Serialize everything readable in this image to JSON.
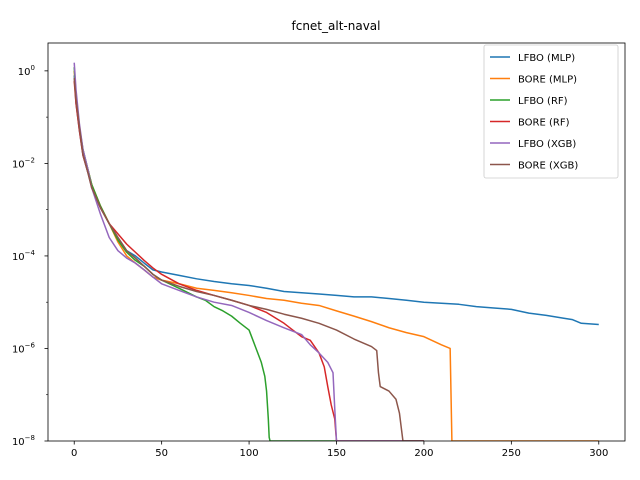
{
  "chart_data": {
    "type": "line",
    "title": "fcnet_alt-naval",
    "xlabel": "",
    "ylabel": "",
    "xlim": [
      -15,
      315
    ],
    "ylim": [
      1e-08,
      4
    ],
    "yscale": "log",
    "x_ticks": [
      0,
      50,
      100,
      150,
      200,
      250,
      300
    ],
    "y_ticks": [
      {
        "value": 1,
        "base": "10",
        "exp": "0"
      },
      {
        "value": 0.01,
        "base": "10",
        "exp": "−2"
      },
      {
        "value": 0.0001,
        "base": "10",
        "exp": "−4"
      },
      {
        "value": 1e-06,
        "base": "10",
        "exp": "−6"
      },
      {
        "value": 1e-08,
        "base": "10",
        "exp": "−8"
      }
    ],
    "grid": false,
    "legend_position": "top-right",
    "series": [
      {
        "name": "LFBO (MLP)",
        "color": "#1f77b4",
        "x": [
          0,
          1,
          3,
          5,
          8,
          10,
          15,
          20,
          25,
          30,
          35,
          40,
          45,
          50,
          60,
          70,
          80,
          90,
          100,
          110,
          120,
          130,
          140,
          150,
          160,
          170,
          180,
          190,
          200,
          210,
          220,
          230,
          240,
          250,
          260,
          270,
          280,
          285,
          290,
          300
        ],
        "y": [
          0.8,
          0.2,
          0.05,
          0.015,
          0.006,
          0.003,
          0.0011,
          0.0005,
          0.00025,
          0.00013,
          0.0001,
          7e-05,
          5e-05,
          4.5e-05,
          3.8e-05,
          3.2e-05,
          2.8e-05,
          2.5e-05,
          2.3e-05,
          2e-05,
          1.7e-05,
          1.6e-05,
          1.5e-05,
          1.4e-05,
          1.3e-05,
          1.3e-05,
          1.2e-05,
          1.1e-05,
          1e-05,
          9.5e-06,
          9e-06,
          8e-06,
          7.5e-06,
          7e-06,
          5.8e-06,
          5.2e-06,
          4.5e-06,
          4.2e-06,
          3.5e-06,
          3.3e-06
        ]
      },
      {
        "name": "BORE (MLP)",
        "color": "#ff7f0e",
        "x": [
          0,
          1,
          3,
          5,
          8,
          10,
          15,
          20,
          25,
          30,
          35,
          40,
          45,
          50,
          60,
          70,
          80,
          90,
          100,
          110,
          120,
          130,
          140,
          150,
          160,
          170,
          180,
          190,
          200,
          210,
          215,
          216,
          300
        ],
        "y": [
          1.0,
          0.3,
          0.06,
          0.018,
          0.007,
          0.0035,
          0.0012,
          0.0005,
          0.0002,
          0.0001,
          7e-05,
          5e-05,
          3.5e-05,
          3e-05,
          2.5e-05,
          2e-05,
          1.8e-05,
          1.6e-05,
          1.4e-05,
          1.2e-05,
          1.1e-05,
          9.5e-06,
          8.5e-06,
          6.5e-06,
          5e-06,
          3.8e-06,
          2.8e-06,
          2.2e-06,
          1.8e-06,
          1.2e-06,
          1e-06,
          1e-08,
          1e-08
        ]
      },
      {
        "name": "LFBO (RF)",
        "color": "#2ca02c",
        "x": [
          0,
          1,
          3,
          5,
          8,
          10,
          15,
          20,
          25,
          30,
          35,
          40,
          45,
          50,
          60,
          70,
          75,
          80,
          85,
          90,
          95,
          100,
          104,
          107,
          109,
          110,
          111,
          111.5,
          112,
          150
        ],
        "y": [
          1.2,
          0.3,
          0.06,
          0.02,
          0.007,
          0.0035,
          0.0012,
          0.0005,
          0.00022,
          0.00012,
          8e-05,
          6e-05,
          4e-05,
          3e-05,
          2e-05,
          1.3e-05,
          1.1e-05,
          8e-06,
          6.5e-06,
          5e-06,
          3.5e-06,
          2.5e-06,
          1e-06,
          5e-07,
          2.5e-07,
          1.2e-07,
          3e-08,
          1.2e-08,
          1e-08,
          1e-08
        ]
      },
      {
        "name": "BORE (RF)",
        "color": "#d62728",
        "x": [
          0,
          1,
          3,
          5,
          8,
          10,
          15,
          20,
          25,
          30,
          35,
          40,
          45,
          50,
          60,
          70,
          80,
          90,
          100,
          110,
          120,
          125,
          130,
          135,
          140,
          143,
          145,
          147,
          149,
          150,
          151,
          200
        ],
        "y": [
          0.6,
          0.2,
          0.05,
          0.015,
          0.006,
          0.003,
          0.0011,
          0.0005,
          0.0003,
          0.00018,
          0.00012,
          8e-05,
          5.5e-05,
          4e-05,
          2.5e-05,
          1.8e-05,
          1.4e-05,
          1.1e-05,
          8.5e-06,
          6e-06,
          3.5e-06,
          2.5e-06,
          1.8e-06,
          1.5e-06,
          8e-07,
          4e-07,
          1.5e-07,
          6e-08,
          3e-08,
          1e-08,
          1e-08,
          1e-08
        ]
      },
      {
        "name": "LFBO (XGB)",
        "color": "#9467bd",
        "x": [
          0,
          1,
          3,
          5,
          8,
          10,
          15,
          20,
          25,
          30,
          35,
          40,
          45,
          50,
          60,
          70,
          80,
          90,
          100,
          110,
          120,
          130,
          135,
          140,
          145,
          148,
          149,
          150,
          151,
          200
        ],
        "y": [
          1.5,
          0.4,
          0.07,
          0.02,
          0.007,
          0.003,
          0.0008,
          0.00025,
          0.00013,
          9e-05,
          7e-05,
          5e-05,
          3.5e-05,
          2.5e-05,
          1.8e-05,
          1.3e-05,
          1e-05,
          8.5e-06,
          6e-06,
          4e-06,
          2.8e-06,
          2e-06,
          1.2e-06,
          8e-07,
          5e-07,
          3e-07,
          5e-08,
          1e-08,
          1e-08,
          1e-08
        ]
      },
      {
        "name": "BORE (XGB)",
        "color": "#8c564b",
        "x": [
          0,
          1,
          3,
          5,
          8,
          10,
          15,
          20,
          25,
          30,
          35,
          40,
          45,
          50,
          60,
          70,
          80,
          90,
          100,
          110,
          120,
          130,
          140,
          150,
          160,
          170,
          173,
          174,
          175,
          180,
          184,
          186,
          187,
          188,
          200
        ],
        "y": [
          0.7,
          0.25,
          0.06,
          0.016,
          0.006,
          0.003,
          0.0011,
          0.0005,
          0.00025,
          0.00013,
          9e-05,
          6e-05,
          4e-05,
          3e-05,
          2.2e-05,
          1.7e-05,
          1.4e-05,
          1.1e-05,
          8.5e-06,
          7e-06,
          5.5e-06,
          4.5e-06,
          3.5e-06,
          2.5e-06,
          1.6e-06,
          1.1e-06,
          9e-07,
          3e-07,
          1.5e-07,
          1.2e-07,
          8e-08,
          4e-08,
          2e-08,
          1e-08,
          1e-08
        ]
      }
    ]
  }
}
